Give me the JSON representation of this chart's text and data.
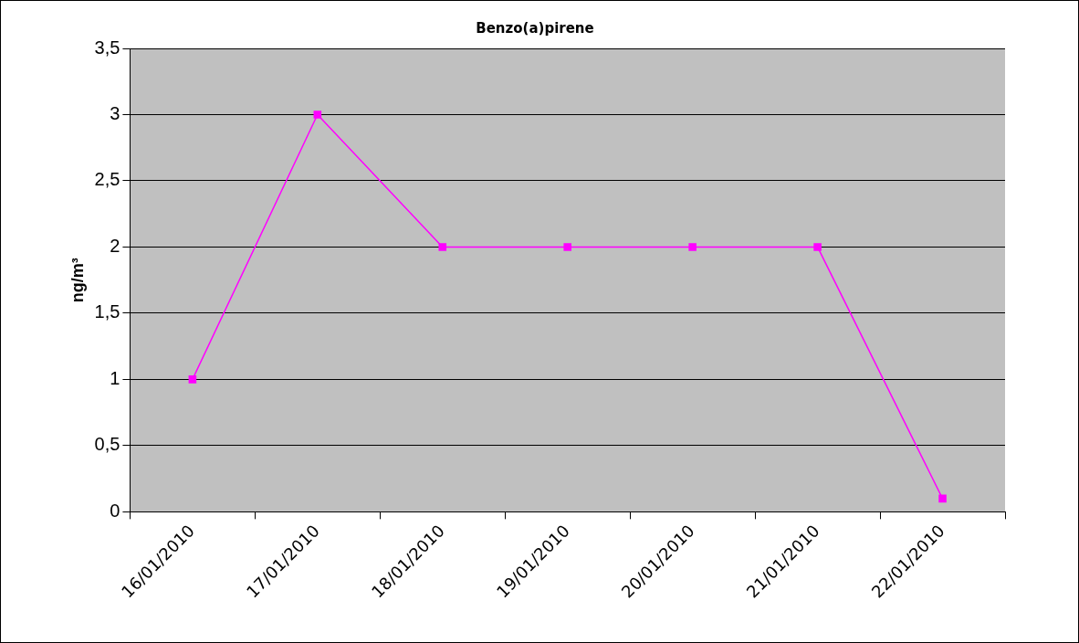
{
  "chart_data": {
    "type": "line",
    "title": "Benzo(a)pirene",
    "ylabel": "ng/m³",
    "categories": [
      "16/01/2010",
      "17/01/2010",
      "18/01/2010",
      "19/01/2010",
      "20/01/2010",
      "21/01/2010",
      "22/01/2010"
    ],
    "series": [
      {
        "color": "#ff00ff",
        "values": [
          1,
          3,
          2,
          2,
          2,
          2,
          0.1
        ]
      }
    ],
    "ylim": [
      0,
      3.5
    ],
    "yticks": [
      0,
      {
        "value": 0.5,
        "label": "0,5"
      },
      1,
      {
        "value": 1.5,
        "label": "1,5"
      },
      2,
      {
        "value": 2.5,
        "label": "2,5"
      },
      3,
      {
        "value": 3.5,
        "label": "3,5"
      }
    ],
    "grid": "y",
    "legend": false,
    "marker": "square",
    "line_style": "solid"
  }
}
